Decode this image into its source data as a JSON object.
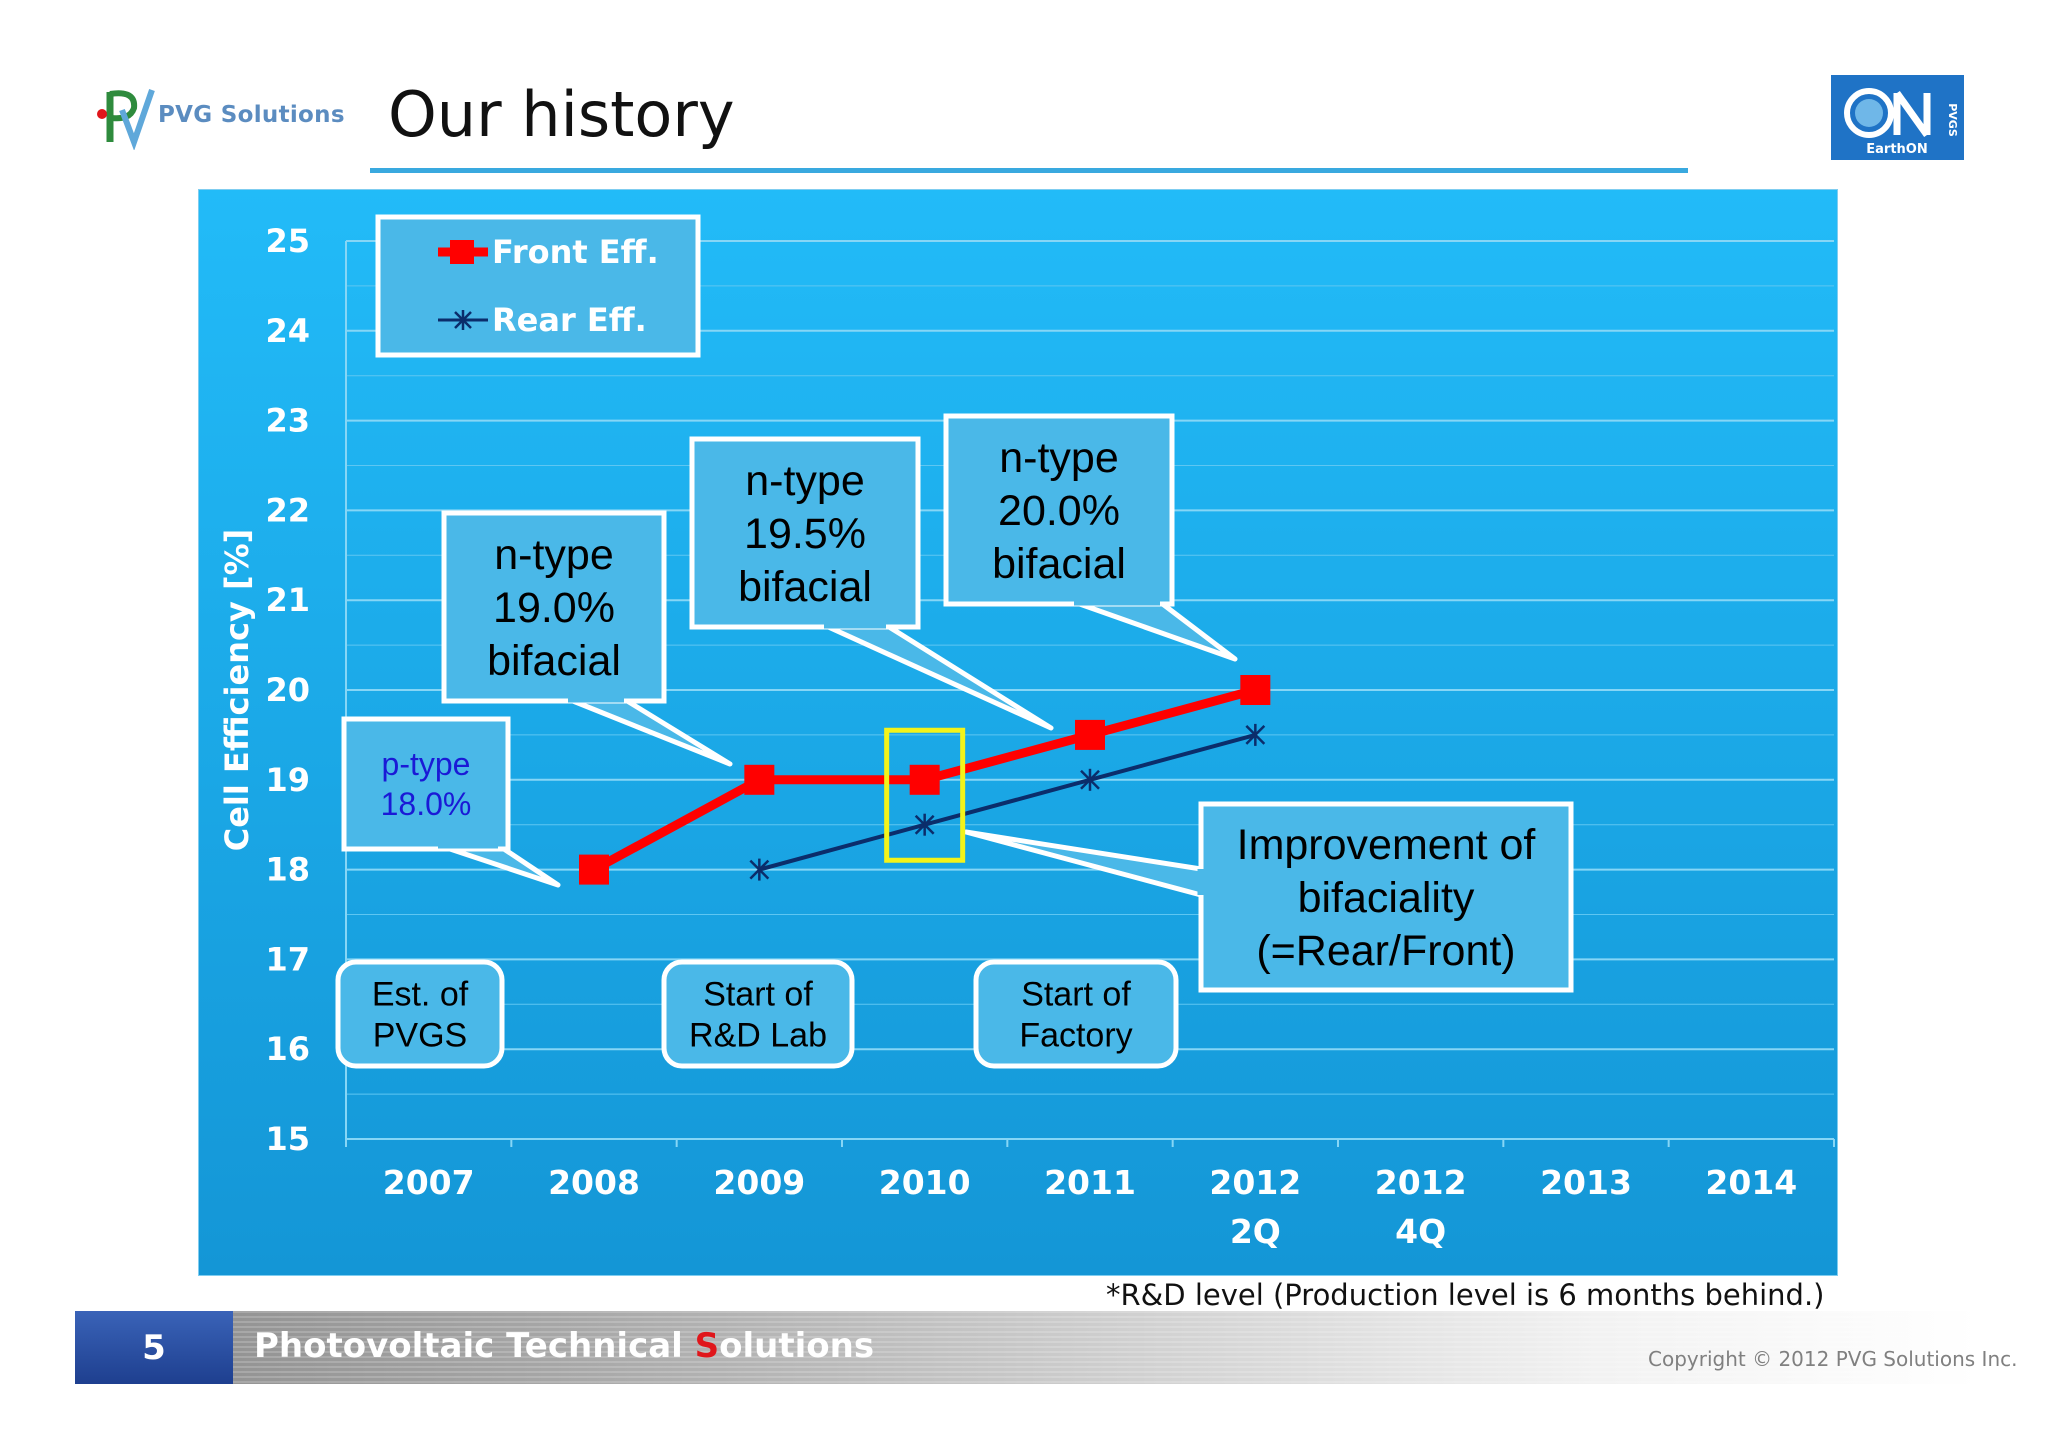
{
  "header": {
    "logo_text": "PVG Solutions",
    "title": "Our history",
    "right_logo_main": "ON",
    "right_logo_sub": "EarthON",
    "right_logo_tag": "PVGS"
  },
  "chart_data": {
    "type": "line",
    "ylabel": "Cell Efficiency [%]",
    "xlabel": "",
    "ylim": [
      15,
      25
    ],
    "yticks": [
      "15",
      "16",
      "17",
      "18",
      "19",
      "20",
      "21",
      "22",
      "23",
      "24",
      "25"
    ],
    "categories": [
      "2007",
      "2008",
      "2009",
      "2010",
      "2011",
      "2012 2Q",
      "2012 4Q",
      "2013",
      "2014"
    ],
    "category_lines": [
      [
        "2007"
      ],
      [
        "2008"
      ],
      [
        "2009"
      ],
      [
        "2010"
      ],
      [
        "2011"
      ],
      [
        "2012",
        "2Q"
      ],
      [
        "2012",
        "4Q"
      ],
      [
        "2013"
      ],
      [
        "2014"
      ]
    ],
    "series": [
      {
        "name": "Front Eff.",
        "color": "#ff0000",
        "marker": "square",
        "values": [
          null,
          18,
          19,
          19,
          19.5,
          20,
          null,
          null,
          null
        ]
      },
      {
        "name": "Rear Eff.",
        "color": "#0b2d6b",
        "marker": "star",
        "values": [
          null,
          null,
          18,
          18.5,
          19,
          19.5,
          null,
          null,
          null
        ]
      }
    ],
    "grid": true,
    "legend": "top-left",
    "colors": {
      "background": "#1aa9ec",
      "grid": "#7ed3f5",
      "text": "#ffffff",
      "box": "#4ab8e8",
      "highlight": "#f3f31a"
    },
    "annotations": {
      "ptype": [
        "p-type",
        "18.0%"
      ],
      "n190": [
        "n-type",
        "19.0%",
        "bifacial"
      ],
      "n195": [
        "n-type",
        "19.5%",
        "bifacial"
      ],
      "n200": [
        "n-type",
        "20.0%",
        "bifacial"
      ],
      "improve": [
        "Improvement of",
        "bifaciality",
        "(=Rear/Front)"
      ],
      "est": [
        "Est. of",
        "PVGS"
      ],
      "lab": [
        "Start of",
        "R&D Lab"
      ],
      "factory": [
        "Start of",
        "Factory"
      ]
    }
  },
  "footnote": "*R&D level (Production level is 6 months behind.)",
  "footer": {
    "page_number": "5",
    "company_pre": "Photovoltaic Technical ",
    "company_accent": "S",
    "company_post": "olutions",
    "copyright": "Copyright © 2012 PVG Solutions Inc."
  }
}
